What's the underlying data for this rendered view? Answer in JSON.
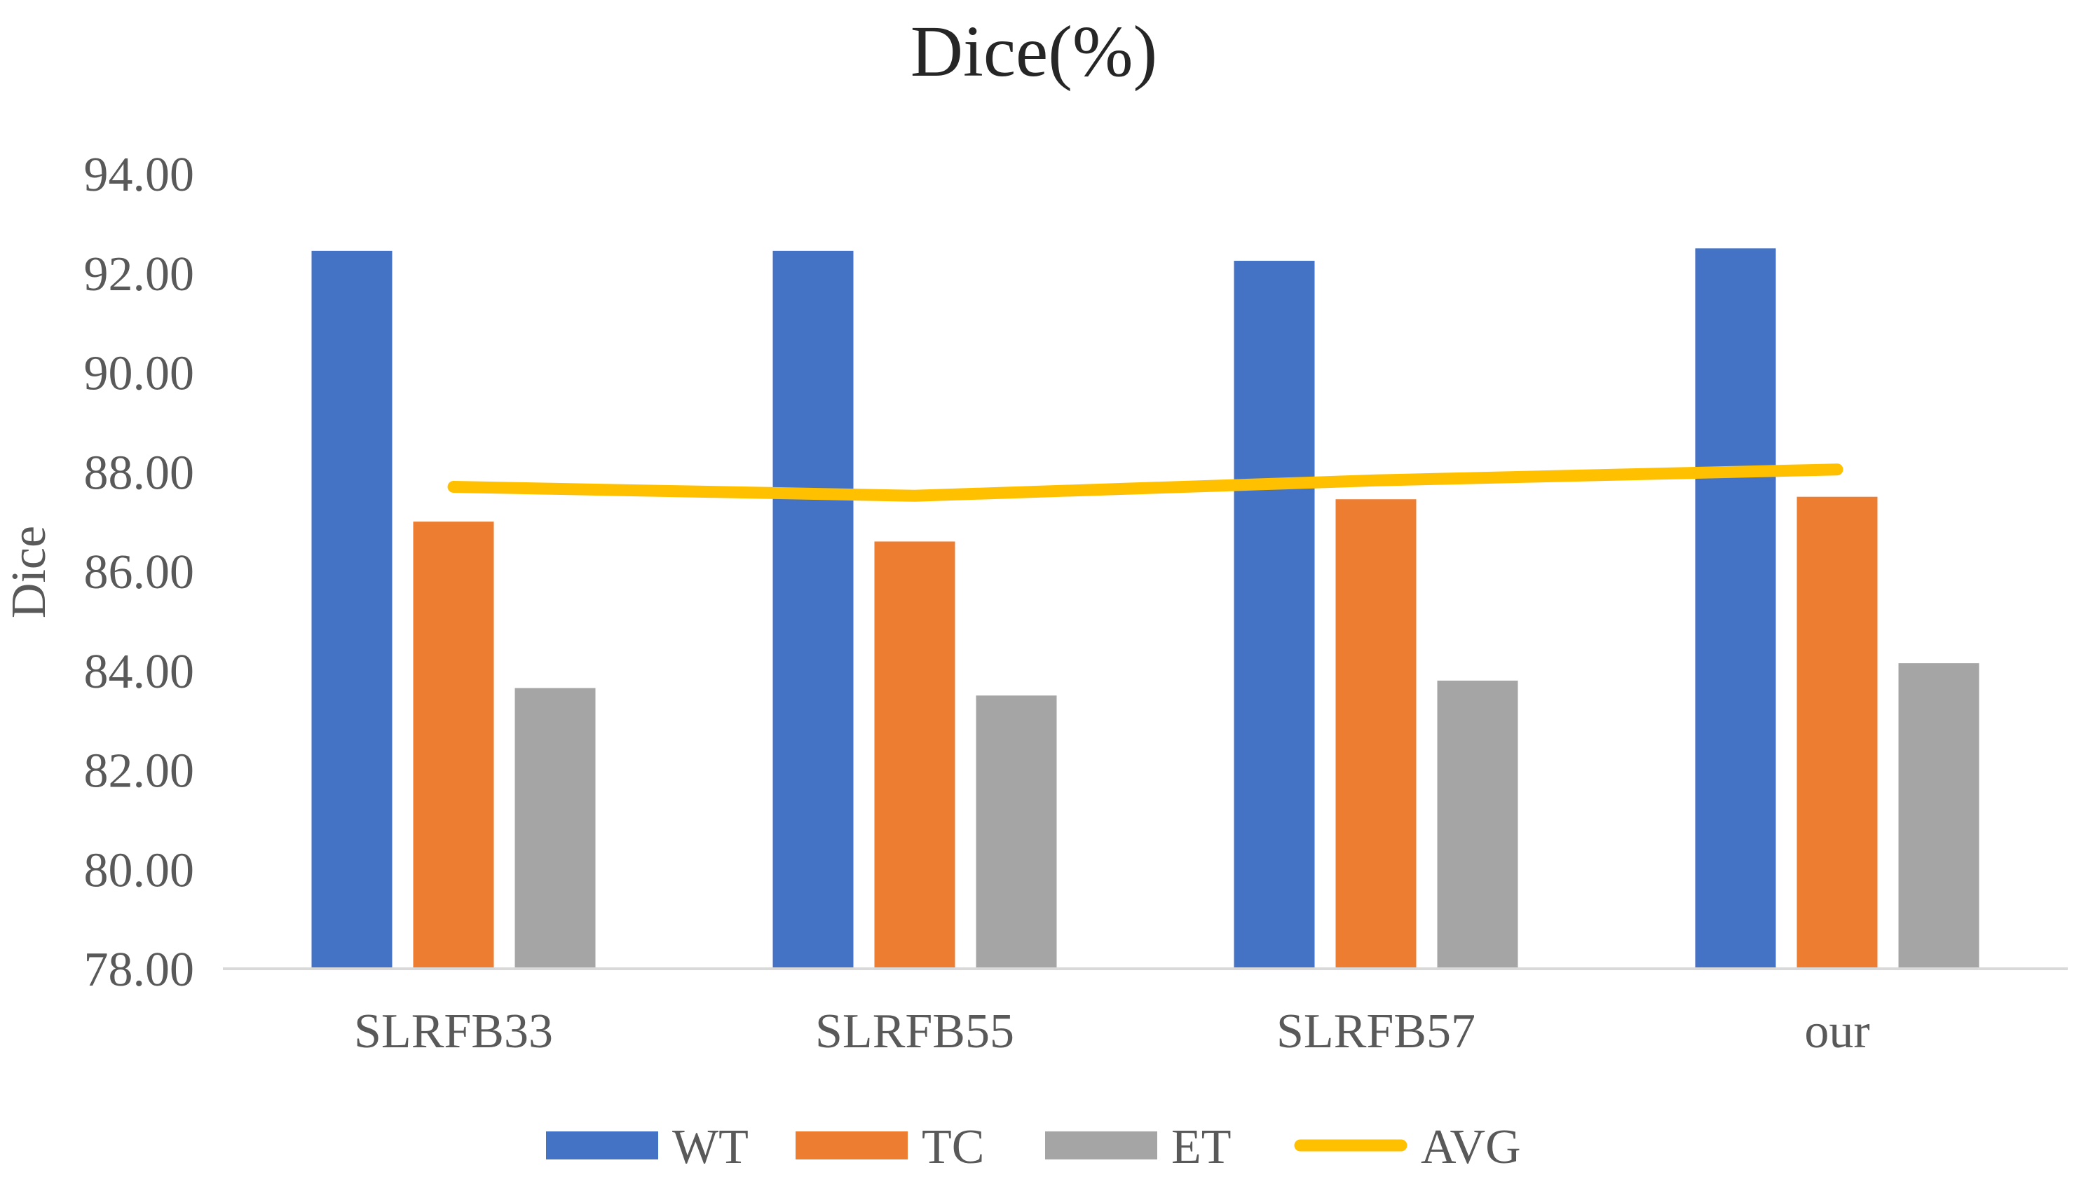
{
  "chart_data": {
    "type": "bar",
    "title": "Dice(%)",
    "xlabel": "",
    "ylabel": "Dice",
    "ylim": [
      78,
      94
    ],
    "yticks": [
      "78.00",
      "80.00",
      "82.00",
      "84.00",
      "86.00",
      "88.00",
      "90.00",
      "92.00",
      "94.00"
    ],
    "grid": false,
    "legend_position": "bottom",
    "categories": [
      "SLRFB33",
      "SLRFB55",
      "SLRFB57",
      "our"
    ],
    "series": [
      {
        "name": "WT",
        "kind": "bar",
        "color": "#4472C4",
        "values": [
          92.45,
          92.45,
          92.25,
          92.5
        ]
      },
      {
        "name": "TC",
        "kind": "bar",
        "color": "#ED7D31",
        "values": [
          87.0,
          86.6,
          87.45,
          87.5
        ]
      },
      {
        "name": "ET",
        "kind": "bar",
        "color": "#A5A5A5",
        "values": [
          83.65,
          83.5,
          83.8,
          84.15
        ]
      },
      {
        "name": "AVG",
        "kind": "line",
        "color": "#FFC000",
        "values": [
          87.7,
          87.52,
          87.83,
          88.05
        ]
      }
    ]
  }
}
